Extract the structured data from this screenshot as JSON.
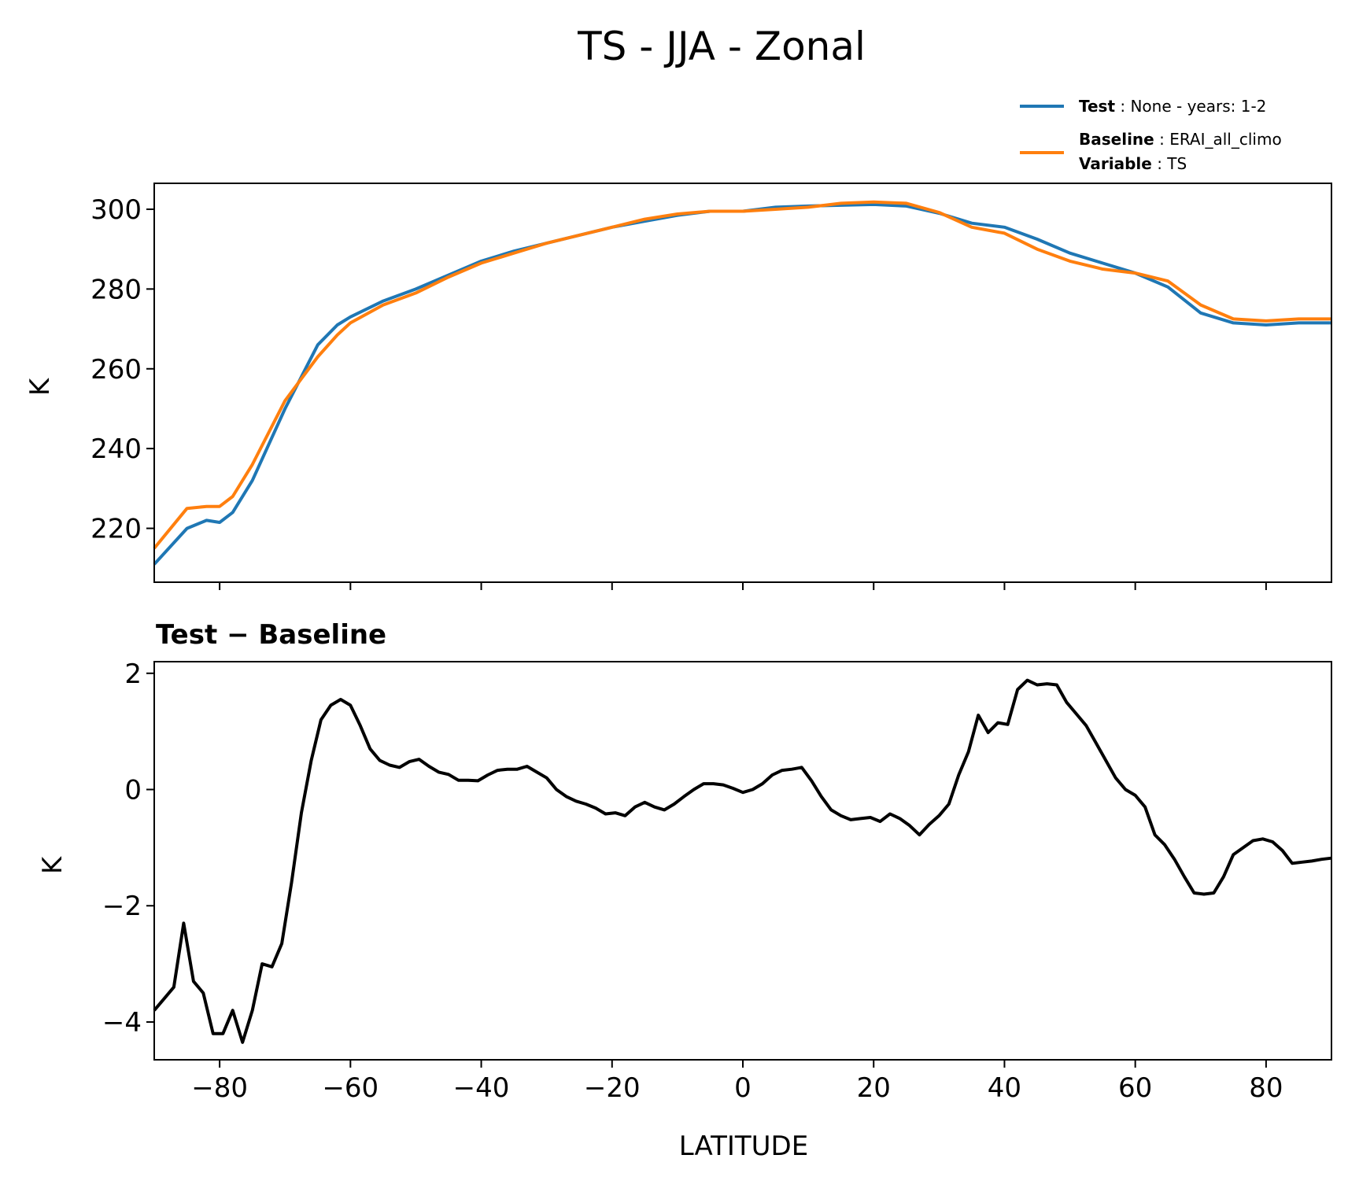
{
  "chart_data": [
    {
      "type": "line",
      "title": "TS - JJA - Zonal",
      "ylabel": "K",
      "xlim": [
        -90,
        90
      ],
      "ylim": [
        206.5,
        306.5
      ],
      "xticks": [
        -80,
        -60,
        -40,
        -20,
        0,
        20,
        40,
        60,
        80
      ],
      "yticks": [
        220,
        240,
        260,
        280,
        300
      ],
      "ytick_labels": [
        "220",
        "240",
        "260",
        "280",
        "300"
      ],
      "grid": false,
      "legend": {
        "placement": "top-right",
        "entries": [
          {
            "key": "Test",
            "value": "None - years: 1-2",
            "color": "#1f77b4"
          },
          {
            "key": "Baseline",
            "value": "ERAI_all_climo",
            "key2": "Variable",
            "value2": "TS",
            "color": "#ff7f0e"
          }
        ]
      },
      "x": [
        -90,
        -85,
        -82,
        -80,
        -78,
        -75,
        -70,
        -65,
        -62,
        -60,
        -55,
        -50,
        -45,
        -40,
        -35,
        -30,
        -25,
        -20,
        -15,
        -10,
        -5,
        0,
        5,
        10,
        15,
        20,
        25,
        30,
        35,
        40,
        45,
        50,
        55,
        60,
        65,
        70,
        75,
        80,
        85,
        90
      ],
      "series": [
        {
          "name": "Test",
          "color": "#1f77b4",
          "values": [
            211,
            220,
            222,
            221.5,
            224,
            232,
            250,
            266,
            271,
            273,
            277,
            280,
            283.5,
            287,
            289.5,
            291.5,
            293.5,
            295.5,
            297,
            298.5,
            299.5,
            299.5,
            300.5,
            300.8,
            301,
            301.2,
            300.8,
            299,
            296.5,
            295.5,
            292.5,
            289,
            286.5,
            284,
            280.5,
            274,
            271.5,
            271,
            271.5,
            271.5
          ]
        },
        {
          "name": "Baseline",
          "color": "#ff7f0e",
          "values": [
            215,
            225,
            225.5,
            225.5,
            228,
            236,
            252,
            263,
            268.5,
            271.5,
            276,
            279,
            283,
            286.5,
            289,
            291.5,
            293.5,
            295.5,
            297.5,
            298.8,
            299.5,
            299.5,
            300,
            300.5,
            301.5,
            301.8,
            301.5,
            299.2,
            295.5,
            294,
            290,
            287,
            285,
            284,
            282,
            276,
            272.5,
            272,
            272.5,
            272.5
          ]
        }
      ]
    },
    {
      "type": "line",
      "title": "Test − Baseline",
      "xlabel": "LATITUDE",
      "ylabel": "K",
      "xlim": [
        -90,
        90
      ],
      "ylim": [
        -4.65,
        2.2
      ],
      "xticks": [
        -80,
        -60,
        -40,
        -20,
        0,
        20,
        40,
        60,
        80
      ],
      "xtick_labels": [
        "−80",
        "−60",
        "−40",
        "−20",
        "0",
        "20",
        "40",
        "60",
        "80"
      ],
      "yticks": [
        -4,
        -2,
        0,
        2
      ],
      "ytick_labels": [
        "−4",
        "−2",
        "0",
        "2"
      ],
      "grid": false,
      "x": [
        -90,
        -88.5,
        -87,
        -85.5,
        -84,
        -82.5,
        -81,
        -79.5,
        -78,
        -76.5,
        -75,
        -73.5,
        -72,
        -70.5,
        -69,
        -67.5,
        -66,
        -64.5,
        -63,
        -61.5,
        -60,
        -58.5,
        -57,
        -55.5,
        -54,
        -52.5,
        -51,
        -49.5,
        -48,
        -46.5,
        -45,
        -43.5,
        -42,
        -40.5,
        -39,
        -37.5,
        -36,
        -34.5,
        -33,
        -31.5,
        -30,
        -28.5,
        -27,
        -25.5,
        -24,
        -22.5,
        -21,
        -19.5,
        -18,
        -16.5,
        -15,
        -13.5,
        -12,
        -10.5,
        -9,
        -7.5,
        -6,
        -4.5,
        -3,
        -1.5,
        0,
        1.5,
        3,
        4.5,
        6,
        7.5,
        9,
        10.5,
        12,
        13.5,
        15,
        16.5,
        18,
        19.5,
        21,
        22.5,
        24,
        25.5,
        27,
        28.5,
        30,
        31.5,
        33,
        34.5,
        36,
        37.5,
        39,
        40.5,
        42,
        43.5,
        45,
        46.5,
        48,
        49.5,
        51,
        52.5,
        54,
        55.5,
        57,
        58.5,
        60,
        61.5,
        63,
        64.5,
        66,
        67.5,
        69,
        70.5,
        72,
        73.5,
        75,
        76.5,
        78,
        79.5,
        81,
        82.5,
        84,
        85.5,
        87,
        88.5,
        90
      ],
      "series": [
        {
          "name": "Test − Baseline",
          "color": "#000000",
          "values": [
            -3.8,
            -3.6,
            -3.4,
            -2.3,
            -3.3,
            -3.5,
            -4.2,
            -4.2,
            -3.8,
            -4.35,
            -3.8,
            -3.0,
            -3.05,
            -2.65,
            -1.6,
            -0.4,
            0.5,
            1.2,
            1.45,
            1.55,
            1.45,
            1.1,
            0.7,
            0.5,
            0.42,
            0.38,
            0.48,
            0.52,
            0.4,
            0.3,
            0.26,
            0.16,
            0.16,
            0.15,
            0.25,
            0.33,
            0.35,
            0.35,
            0.4,
            0.3,
            0.2,
            0.0,
            -0.12,
            -0.2,
            -0.25,
            -0.32,
            -0.42,
            -0.4,
            -0.45,
            -0.3,
            -0.22,
            -0.3,
            -0.35,
            -0.25,
            -0.12,
            0.0,
            0.1,
            0.1,
            0.08,
            0.02,
            -0.05,
            0.0,
            0.1,
            0.25,
            0.33,
            0.35,
            0.38,
            0.15,
            -0.12,
            -0.35,
            -0.45,
            -0.52,
            -0.5,
            -0.48,
            -0.55,
            -0.42,
            -0.5,
            -0.62,
            -0.78,
            -0.6,
            -0.45,
            -0.25,
            0.25,
            0.65,
            1.28,
            0.98,
            1.15,
            1.12,
            1.72,
            1.88,
            1.8,
            1.82,
            1.8,
            1.5,
            1.3,
            1.1,
            0.8,
            0.5,
            0.2,
            0.0,
            -0.1,
            -0.3,
            -0.78,
            -0.95,
            -1.2,
            -1.5,
            -1.78,
            -1.8,
            -1.78,
            -1.5,
            -1.12,
            -1.0,
            -0.88,
            -0.85,
            -0.9,
            -1.05,
            -1.27,
            -1.25,
            -1.23,
            -1.2,
            -1.18
          ]
        }
      ]
    }
  ]
}
